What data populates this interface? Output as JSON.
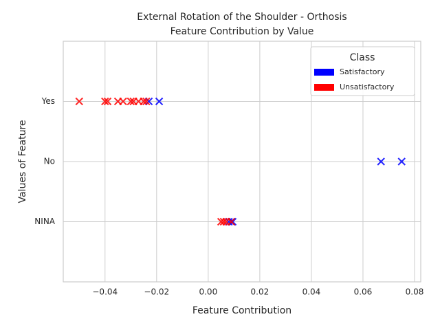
{
  "chart_data": {
    "type": "scatter",
    "title": [
      "External Rotation of the Shoulder - Orthosis",
      "Feature Contribution by Value"
    ],
    "x_label": "Feature Contribution",
    "y_label": "Values of Feature",
    "categories": [
      "NINA",
      "No",
      "Yes"
    ],
    "series": [
      {
        "name": "Satisfactory",
        "color": "#0000ff",
        "values": [
          -0.023,
          -0.019,
          0.067,
          0.075,
          0.008,
          0.009,
          0.0095
        ],
        "y": [
          "Yes",
          "Yes",
          "No",
          "No",
          "NINA",
          "NINA",
          "NINA"
        ]
      },
      {
        "name": "Unsatisfactory",
        "color": "#ff0000",
        "values": [
          -0.05,
          -0.04,
          -0.039,
          -0.035,
          -0.033,
          -0.03,
          -0.029,
          -0.027,
          -0.025,
          -0.024,
          0.005,
          0.006,
          0.007,
          0.009
        ],
        "y": [
          "Yes",
          "Yes",
          "Yes",
          "Yes",
          "Yes",
          "Yes",
          "Yes",
          "Yes",
          "Yes",
          "Yes",
          "NINA",
          "NINA",
          "NINA",
          "NINA"
        ]
      }
    ],
    "xlim": [
      -0.0562,
      0.0824
    ],
    "xticks": [
      {
        "value": -0.04,
        "label": "−0.04"
      },
      {
        "value": -0.02,
        "label": "−0.02"
      },
      {
        "value": 0,
        "label": "0.00"
      },
      0.02,
      0.04,
      0.06,
      0.08
    ],
    "ylim": [
      -1,
      3
    ],
    "grid": true,
    "legend": {
      "title": "Class",
      "position": "upper right"
    }
  }
}
